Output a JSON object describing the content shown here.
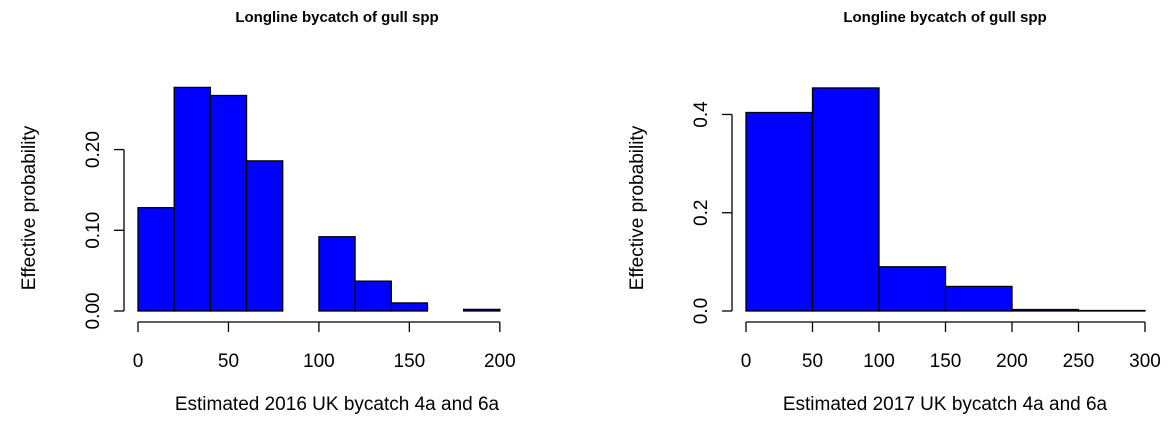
{
  "chart_data": [
    {
      "type": "histogram",
      "title": "Longline bycatch of gull spp",
      "x_label": "Estimated 2016 UK bycatch 4a and 6a",
      "y_label": "Effective probability",
      "bins": [
        0,
        20,
        40,
        60,
        80,
        100,
        120,
        140,
        160,
        180,
        200,
        220
      ],
      "values": [
        0.128,
        0.277,
        0.267,
        0.186,
        0,
        0.092,
        0.037,
        0.01,
        0,
        0.002,
        0
      ],
      "color": "#0000ff",
      "xlim": [
        0,
        220
      ],
      "xticks": [
        0,
        50,
        100,
        150,
        200
      ],
      "ylim": [
        0,
        0.28
      ],
      "yticks": [
        {
          "value": 0,
          "label": "0.00"
        },
        {
          "value": 0.1,
          "label": "0.10"
        },
        {
          "value": 0.2,
          "label": "0.20"
        }
      ]
    },
    {
      "type": "histogram",
      "title": "Longline bycatch of gull spp",
      "x_label": "Estimated 2017 UK bycatch 4a and 6a",
      "y_label": "Effective probability",
      "bins": [
        0,
        50,
        100,
        150,
        200,
        250,
        300
      ],
      "values": [
        0.404,
        0.454,
        0.09,
        0.05,
        0.003,
        0.001
      ],
      "color": "#0000ff",
      "xlim": [
        0,
        300
      ],
      "xticks": [
        0,
        50,
        100,
        150,
        200,
        250,
        300
      ],
      "ylim": [
        0,
        0.46
      ],
      "yticks": [
        {
          "value": 0,
          "label": "0.0"
        },
        {
          "value": 0.2,
          "label": "0.2"
        },
        {
          "value": 0.4,
          "label": "0.4"
        }
      ]
    }
  ]
}
